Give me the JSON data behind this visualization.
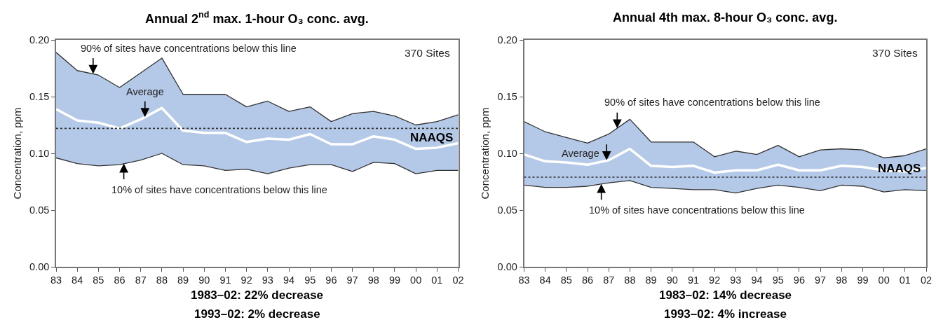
{
  "chart_data": [
    {
      "type": "line",
      "title": "Annual 2$^{nd}$ max. 1-hour O₃ conc. avg.",
      "ylabel": "Concentration, ppm",
      "x": [
        1983,
        1984,
        1985,
        1986,
        1987,
        1988,
        1989,
        1990,
        1991,
        1992,
        1993,
        1994,
        1995,
        1996,
        1997,
        1998,
        1999,
        2000,
        2001,
        2002
      ],
      "series": [
        {
          "color": "#333333",
          "values": [
            0.096,
            0.091,
            0.089,
            0.09,
            0.094,
            0.1,
            0.09,
            0.089,
            0.085,
            0.086,
            0.082,
            0.087,
            0.09,
            0.09,
            0.084,
            0.092,
            0.091,
            0.082,
            0.085,
            0.085
          ]
        },
        {
          "type": "area",
          "color": "#b4c9e8",
          "values": [
            0.189,
            0.173,
            0.169,
            0.158,
            0.171,
            0.184,
            0.152,
            0.152,
            0.152,
            0.141,
            0.146,
            0.137,
            0.141,
            0.128,
            0.135,
            0.137,
            0.133,
            0.125,
            0.128,
            0.134
          ]
        },
        {
          "color": "#ffffff",
          "values": [
            0.139,
            0.129,
            0.127,
            0.122,
            0.13,
            0.14,
            0.12,
            0.118,
            0.118,
            0.11,
            0.113,
            0.112,
            0.117,
            0.108,
            0.108,
            0.115,
            0.112,
            0.104,
            0.105,
            0.109
          ]
        }
      ],
      "xlim": [
        1983,
        2002
      ],
      "xticks": [
        {
          "value": 1983,
          "label": "83"
        },
        {
          "value": 1984,
          "label": "84"
        },
        {
          "value": 1985,
          "label": "85"
        },
        {
          "value": 1986,
          "label": "86"
        },
        {
          "value": 1987,
          "label": "87"
        },
        {
          "value": 1988,
          "label": "88"
        },
        {
          "value": 1989,
          "label": "89"
        },
        {
          "value": 1990,
          "label": "90"
        },
        {
          "value": 1991,
          "label": "91"
        },
        {
          "value": 1992,
          "label": "92"
        },
        {
          "value": 1993,
          "label": "93"
        },
        {
          "value": 1994,
          "label": "94"
        },
        {
          "value": 1995,
          "label": "95"
        },
        {
          "value": 1996,
          "label": "96"
        },
        {
          "value": 1997,
          "label": "97"
        },
        {
          "value": 1998,
          "label": "98"
        },
        {
          "value": 1999,
          "label": "99"
        },
        {
          "value": 2000,
          "label": "00"
        },
        {
          "value": 2001,
          "label": "01"
        },
        {
          "value": 2002,
          "label": "02"
        }
      ],
      "ylim": [
        0,
        0.2
      ],
      "yticks": [
        {
          "value": 0,
          "label": "0.00"
        },
        {
          "value": 0.05,
          "label": "0.05"
        },
        {
          "value": 0.1,
          "label": "0.10"
        },
        {
          "value": 0.15,
          "label": "0.15"
        },
        {
          "value": 0.2,
          "label": "0.20"
        }
      ],
      "ref_lines": [
        {
          "axis": "y",
          "value": 0.122,
          "label": "NAAQS",
          "color": "#333333",
          "line_style": "dotted"
        }
      ],
      "annotations": [
        "370 Sites",
        {
          "text": "90% of sites have concentrations below this line",
          "x": 1984.75,
          "y": 0.17
        },
        {
          "text": "Average",
          "x": 1987.2,
          "y": 0.132
        },
        {
          "text": "10% of sites have concentrations below this line",
          "x": 1986.2,
          "y": 0.091
        },
        "1983–02: 22% decrease",
        "1993–02: 2% decrease"
      ]
    },
    {
      "type": "line",
      "title": "Annual 4th max. 8-hour O₃ conc. avg.",
      "ylabel": "Concentration, ppm",
      "x": [
        1983,
        1984,
        1985,
        1986,
        1987,
        1988,
        1989,
        1990,
        1991,
        1992,
        1993,
        1994,
        1995,
        1996,
        1997,
        1998,
        1999,
        2000,
        2001,
        2002
      ],
      "series": [
        {
          "color": "#333333",
          "values": [
            0.072,
            0.07,
            0.07,
            0.071,
            0.074,
            0.076,
            0.07,
            0.069,
            0.068,
            0.068,
            0.065,
            0.069,
            0.072,
            0.07,
            0.067,
            0.072,
            0.071,
            0.066,
            0.068,
            0.067
          ]
        },
        {
          "type": "area",
          "color": "#b4c9e8",
          "values": [
            0.128,
            0.119,
            0.114,
            0.109,
            0.117,
            0.13,
            0.11,
            0.11,
            0.11,
            0.097,
            0.102,
            0.099,
            0.107,
            0.097,
            0.103,
            0.104,
            0.103,
            0.096,
            0.098,
            0.104
          ]
        },
        {
          "color": "#ffffff",
          "values": [
            0.099,
            0.093,
            0.092,
            0.09,
            0.094,
            0.104,
            0.089,
            0.088,
            0.089,
            0.083,
            0.085,
            0.085,
            0.09,
            0.085,
            0.085,
            0.089,
            0.088,
            0.085,
            0.084,
            0.087
          ]
        }
      ],
      "xlim": [
        1983,
        2002
      ],
      "xticks": [
        {
          "value": 1983,
          "label": "83"
        },
        {
          "value": 1984,
          "label": "84"
        },
        {
          "value": 1985,
          "label": "85"
        },
        {
          "value": 1986,
          "label": "86"
        },
        {
          "value": 1987,
          "label": "87"
        },
        {
          "value": 1988,
          "label": "88"
        },
        {
          "value": 1989,
          "label": "89"
        },
        {
          "value": 1990,
          "label": "90"
        },
        {
          "value": 1991,
          "label": "91"
        },
        {
          "value": 1992,
          "label": "92"
        },
        {
          "value": 1993,
          "label": "93"
        },
        {
          "value": 1994,
          "label": "94"
        },
        {
          "value": 1995,
          "label": "95"
        },
        {
          "value": 1996,
          "label": "96"
        },
        {
          "value": 1997,
          "label": "97"
        },
        {
          "value": 1998,
          "label": "98"
        },
        {
          "value": 1999,
          "label": "99"
        },
        {
          "value": 2000,
          "label": "00"
        },
        {
          "value": 2001,
          "label": "01"
        },
        {
          "value": 2002,
          "label": "02"
        }
      ],
      "ylim": [
        0,
        0.2
      ],
      "yticks": [
        {
          "value": 0,
          "label": "0.00"
        },
        {
          "value": 0.05,
          "label": "0.05"
        },
        {
          "value": 0.1,
          "label": "0.10"
        },
        {
          "value": 0.15,
          "label": "0.15"
        },
        {
          "value": 0.2,
          "label": "0.20"
        }
      ],
      "ref_lines": [
        {
          "axis": "y",
          "value": 0.079,
          "label": "NAAQS",
          "color": "#333333",
          "line_style": "dotted"
        }
      ],
      "annotations": [
        "370 Sites",
        {
          "text": "90% of sites have concentrations below this line",
          "x": 1987.4,
          "y": 0.122
        },
        {
          "text": "Average",
          "x": 1986.9,
          "y": 0.094
        },
        {
          "text": "10% of sites have concentrations below this line",
          "x": 1986.65,
          "y": 0.073
        },
        "1983–02: 14% decrease",
        "1993–02: 4% increase"
      ]
    }
  ]
}
